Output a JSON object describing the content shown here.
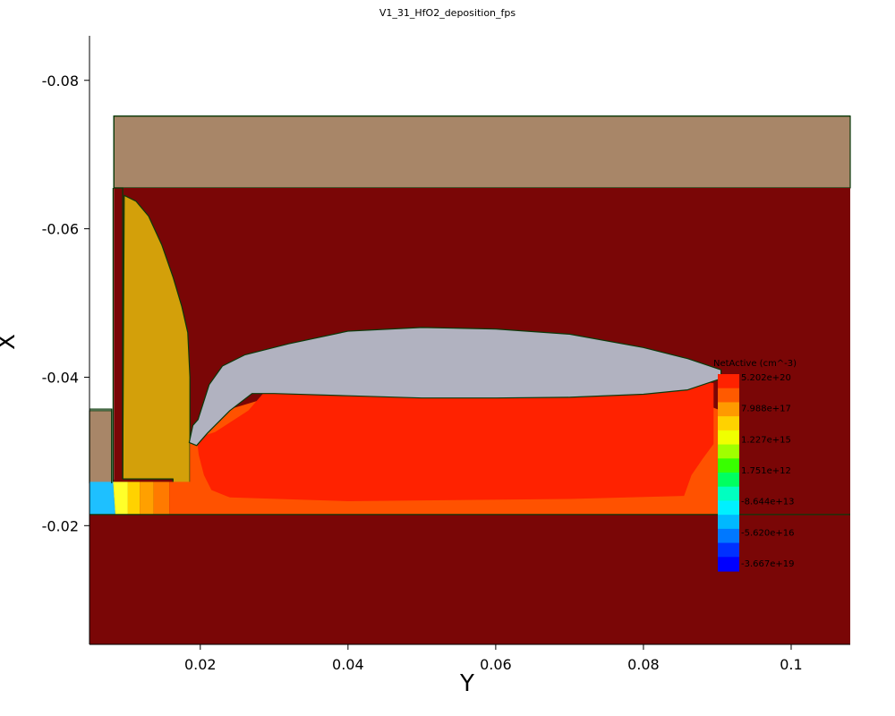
{
  "chart_data": {
    "type": "heatmap",
    "title": "V1_31_HfO2_deposition_fps",
    "xlabel": "Y",
    "ylabel": "X",
    "xlim": [
      0.005,
      0.108
    ],
    "ylim": [
      -0.086,
      -0.004
    ],
    "y_inverted": true,
    "x_ticks": [
      {
        "value": 0.02,
        "label": "0.02"
      },
      {
        "value": 0.04,
        "label": "0.04"
      },
      {
        "value": 0.06,
        "label": "0.06"
      },
      {
        "value": 0.08,
        "label": "0.08"
      },
      {
        "value": 0.1,
        "label": "0.1"
      }
    ],
    "y_ticks": [
      {
        "value": -0.08,
        "label": "-0.08"
      },
      {
        "value": -0.06,
        "label": "-0.06"
      },
      {
        "value": -0.04,
        "label": "-0.04"
      },
      {
        "value": -0.02,
        "label": "-0.02"
      }
    ],
    "regions": [
      {
        "name": "substrate",
        "color": "#7a0606",
        "points": [
          [
            0.005,
            -0.0215
          ],
          [
            0.108,
            -0.0215
          ],
          [
            0.108,
            -0.004
          ],
          [
            0.005,
            -0.004
          ]
        ]
      },
      {
        "name": "cap-layer",
        "color": "#a88668",
        "points": [
          [
            0.0083,
            -0.0752
          ],
          [
            0.108,
            -0.0752
          ],
          [
            0.108,
            -0.0655
          ],
          [
            0.0083,
            -0.0655
          ]
        ]
      },
      {
        "name": "left-pad",
        "color": "#a88668",
        "points": [
          [
            0.005,
            -0.0355
          ],
          [
            0.008,
            -0.0355
          ],
          [
            0.008,
            -0.0257
          ],
          [
            0.005,
            -0.0257
          ]
        ]
      },
      {
        "name": "upper-fill",
        "color": "#7a0606",
        "points": [
          [
            0.0083,
            -0.0655
          ],
          [
            0.108,
            -0.0655
          ],
          [
            0.108,
            -0.0215
          ],
          [
            0.0082,
            -0.0215
          ],
          [
            0.0082,
            -0.0262
          ],
          [
            0.0083,
            -0.0262
          ]
        ]
      },
      {
        "name": "left-spacer",
        "color": "#d3a00a",
        "points": [
          [
            0.0095,
            -0.0263
          ],
          [
            0.0097,
            -0.0645
          ],
          [
            0.0113,
            -0.0637
          ],
          [
            0.013,
            -0.0617
          ],
          [
            0.0148,
            -0.0578
          ],
          [
            0.0163,
            -0.0535
          ],
          [
            0.0175,
            -0.0495
          ],
          [
            0.0183,
            -0.046
          ],
          [
            0.0186,
            -0.04
          ],
          [
            0.0186,
            -0.0255
          ],
          [
            0.0163,
            -0.0255
          ],
          [
            0.0163,
            -0.0263
          ]
        ]
      },
      {
        "name": "right-spacer",
        "color": "#d3a00a",
        "points": [
          [
            0.0873,
            -0.0252
          ],
          [
            0.0878,
            -0.0262
          ],
          [
            0.0888,
            -0.0282
          ],
          [
            0.0905,
            -0.0295
          ],
          [
            0.092,
            -0.0315
          ],
          [
            0.092,
            -0.0252
          ]
        ]
      },
      {
        "name": "diffusion-left-0",
        "color": "#1ec0ff",
        "points": [
          [
            0.005,
            -0.0259
          ],
          [
            0.0082,
            -0.0259
          ],
          [
            0.0085,
            -0.0215
          ],
          [
            0.005,
            -0.0215
          ]
        ]
      },
      {
        "name": "diffusion-left-1",
        "color": "#ffff2a",
        "points": [
          [
            0.0082,
            -0.0259
          ],
          [
            0.0102,
            -0.0259
          ],
          [
            0.0102,
            -0.0215
          ],
          [
            0.0085,
            -0.0215
          ]
        ]
      },
      {
        "name": "diffusion-left-2",
        "color": "#ffd200",
        "points": [
          [
            0.0102,
            -0.0259
          ],
          [
            0.0118,
            -0.0259
          ],
          [
            0.0118,
            -0.0215
          ],
          [
            0.0102,
            -0.0215
          ]
        ]
      },
      {
        "name": "diffusion-left-3",
        "color": "#ffa000",
        "points": [
          [
            0.0118,
            -0.0259
          ],
          [
            0.0137,
            -0.0259
          ],
          [
            0.0137,
            -0.0215
          ],
          [
            0.0118,
            -0.0215
          ]
        ]
      },
      {
        "name": "diffusion-left-4",
        "color": "#ff7a00",
        "points": [
          [
            0.0137,
            -0.0259
          ],
          [
            0.0158,
            -0.0259
          ],
          [
            0.0158,
            -0.0215
          ],
          [
            0.0137,
            -0.0215
          ]
        ]
      },
      {
        "name": "diffusion-outer",
        "color": "#ff5200",
        "points": [
          [
            0.0158,
            -0.0259
          ],
          [
            0.0186,
            -0.0259
          ],
          [
            0.0186,
            -0.0315
          ],
          [
            0.02,
            -0.0345
          ],
          [
            0.03,
            -0.0375
          ],
          [
            0.06,
            -0.037
          ],
          [
            0.08,
            -0.0395
          ],
          [
            0.0905,
            -0.0355
          ],
          [
            0.0906,
            -0.0215
          ],
          [
            0.0158,
            -0.0215
          ]
        ]
      },
      {
        "name": "diffusion-core",
        "color": "#ff2200",
        "points": [
          [
            0.0195,
            -0.0318
          ],
          [
            0.022,
            -0.0326
          ],
          [
            0.0265,
            -0.0355
          ],
          [
            0.0285,
            -0.0378
          ],
          [
            0.035,
            -0.0378
          ],
          [
            0.055,
            -0.0372
          ],
          [
            0.075,
            -0.039
          ],
          [
            0.085,
            -0.0398
          ],
          [
            0.0895,
            -0.0392
          ],
          [
            0.0895,
            -0.031
          ],
          [
            0.088,
            -0.029
          ],
          [
            0.0865,
            -0.0268
          ],
          [
            0.0855,
            -0.024
          ],
          [
            0.07,
            -0.0236
          ],
          [
            0.04,
            -0.0233
          ],
          [
            0.024,
            -0.0238
          ],
          [
            0.0215,
            -0.0248
          ],
          [
            0.0205,
            -0.0268
          ],
          [
            0.0198,
            -0.0295
          ]
        ]
      },
      {
        "name": "oxide-lens",
        "color": "#b1b2c0",
        "points": [
          [
            0.0185,
            -0.0312
          ],
          [
            0.019,
            -0.0335
          ],
          [
            0.0197,
            -0.0343
          ],
          [
            0.0212,
            -0.039
          ],
          [
            0.023,
            -0.0415
          ],
          [
            0.026,
            -0.043
          ],
          [
            0.032,
            -0.0445
          ],
          [
            0.04,
            -0.0462
          ],
          [
            0.05,
            -0.0467
          ],
          [
            0.06,
            -0.0465
          ],
          [
            0.07,
            -0.0458
          ],
          [
            0.08,
            -0.044
          ],
          [
            0.086,
            -0.0425
          ],
          [
            0.0905,
            -0.041
          ],
          [
            0.0905,
            -0.0398
          ],
          [
            0.086,
            -0.0383
          ],
          [
            0.08,
            -0.0377
          ],
          [
            0.07,
            -0.0373
          ],
          [
            0.06,
            -0.0372
          ],
          [
            0.05,
            -0.0372
          ],
          [
            0.04,
            -0.0375
          ],
          [
            0.03,
            -0.0378
          ],
          [
            0.027,
            -0.0378
          ],
          [
            0.024,
            -0.0355
          ],
          [
            0.021,
            -0.0325
          ],
          [
            0.0195,
            -0.0308
          ]
        ]
      }
    ],
    "boundary_lines": [
      {
        "points": [
          [
            0.0095,
            -0.0263
          ],
          [
            0.0095,
            -0.0655
          ],
          [
            0.0083,
            -0.0655
          ],
          [
            0.0083,
            -0.0752
          ],
          [
            0.108,
            -0.0752
          ]
        ]
      },
      {
        "points": [
          [
            0.005,
            -0.0357
          ],
          [
            0.008,
            -0.0357
          ],
          [
            0.008,
            -0.0257
          ]
        ]
      },
      {
        "points": [
          [
            0.005,
            -0.0215
          ],
          [
            0.108,
            -0.0215
          ]
        ]
      },
      {
        "points": [
          [
            0.0082,
            -0.0259
          ],
          [
            0.0082,
            -0.0655
          ]
        ]
      }
    ],
    "colorbar": {
      "title": "NetActive (cm^-3)",
      "labels": [
        "5.202e+20",
        "7.988e+17",
        "1.227e+15",
        "1.751e+12",
        "-8.644e+13",
        "-5.620e+16",
        "-3.667e+19"
      ],
      "colors": [
        "#ff2200",
        "#ff5a00",
        "#ff9a00",
        "#ffd200",
        "#f0ff00",
        "#a0ff00",
        "#38ff00",
        "#00ff60",
        "#00ffc0",
        "#00f0ff",
        "#00b8ff",
        "#0078ff",
        "#0030ff",
        "#0000ff"
      ]
    }
  }
}
